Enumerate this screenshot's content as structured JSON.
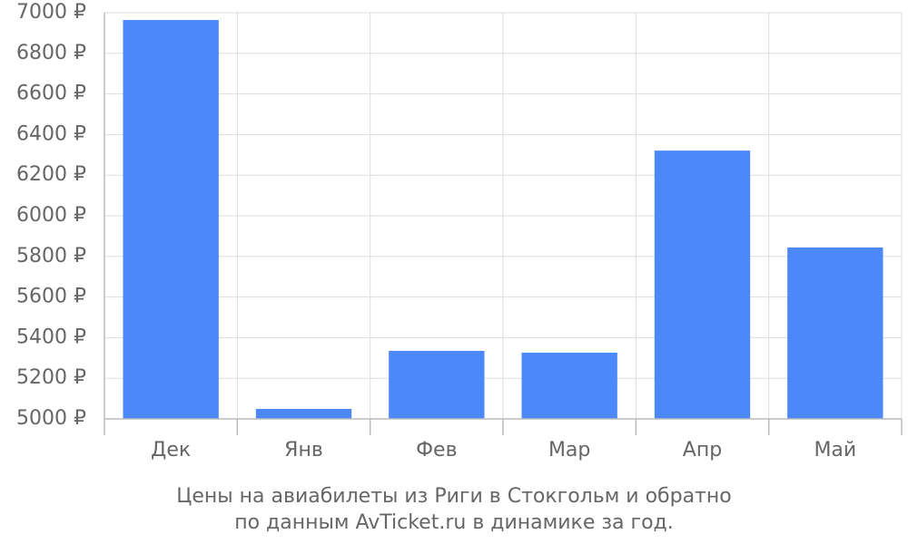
{
  "chart_data": {
    "type": "bar",
    "title": "Цены на авиабилеты из Риги в Стокгольм и обратно",
    "subtitle": "по данным AvTicket.ru в динамике за год.",
    "categories": [
      "Дек",
      "Янв",
      "Фев",
      "Мар",
      "Апр",
      "Май"
    ],
    "values": [
      6964,
      5049,
      5335,
      5326,
      6321,
      5844
    ],
    "color": "#4d88f9",
    "ylim": [
      5000,
      7000
    ],
    "yticks": [
      {
        "value": 5000,
        "label": "5000 ₽"
      },
      {
        "value": 5200,
        "label": "5200 ₽"
      },
      {
        "value": 5400,
        "label": "5400 ₽"
      },
      {
        "value": 5600,
        "label": "5600 ₽"
      },
      {
        "value": 5800,
        "label": "5800 ₽"
      },
      {
        "value": 6000,
        "label": "6000 ₽"
      },
      {
        "value": 6200,
        "label": "6200 ₽"
      },
      {
        "value": 6400,
        "label": "6400 ₽"
      },
      {
        "value": 6600,
        "label": "6600 ₽"
      },
      {
        "value": 6800,
        "label": "6800 ₽"
      },
      {
        "value": 7000,
        "label": "7000 ₽"
      }
    ],
    "grid": true
  }
}
